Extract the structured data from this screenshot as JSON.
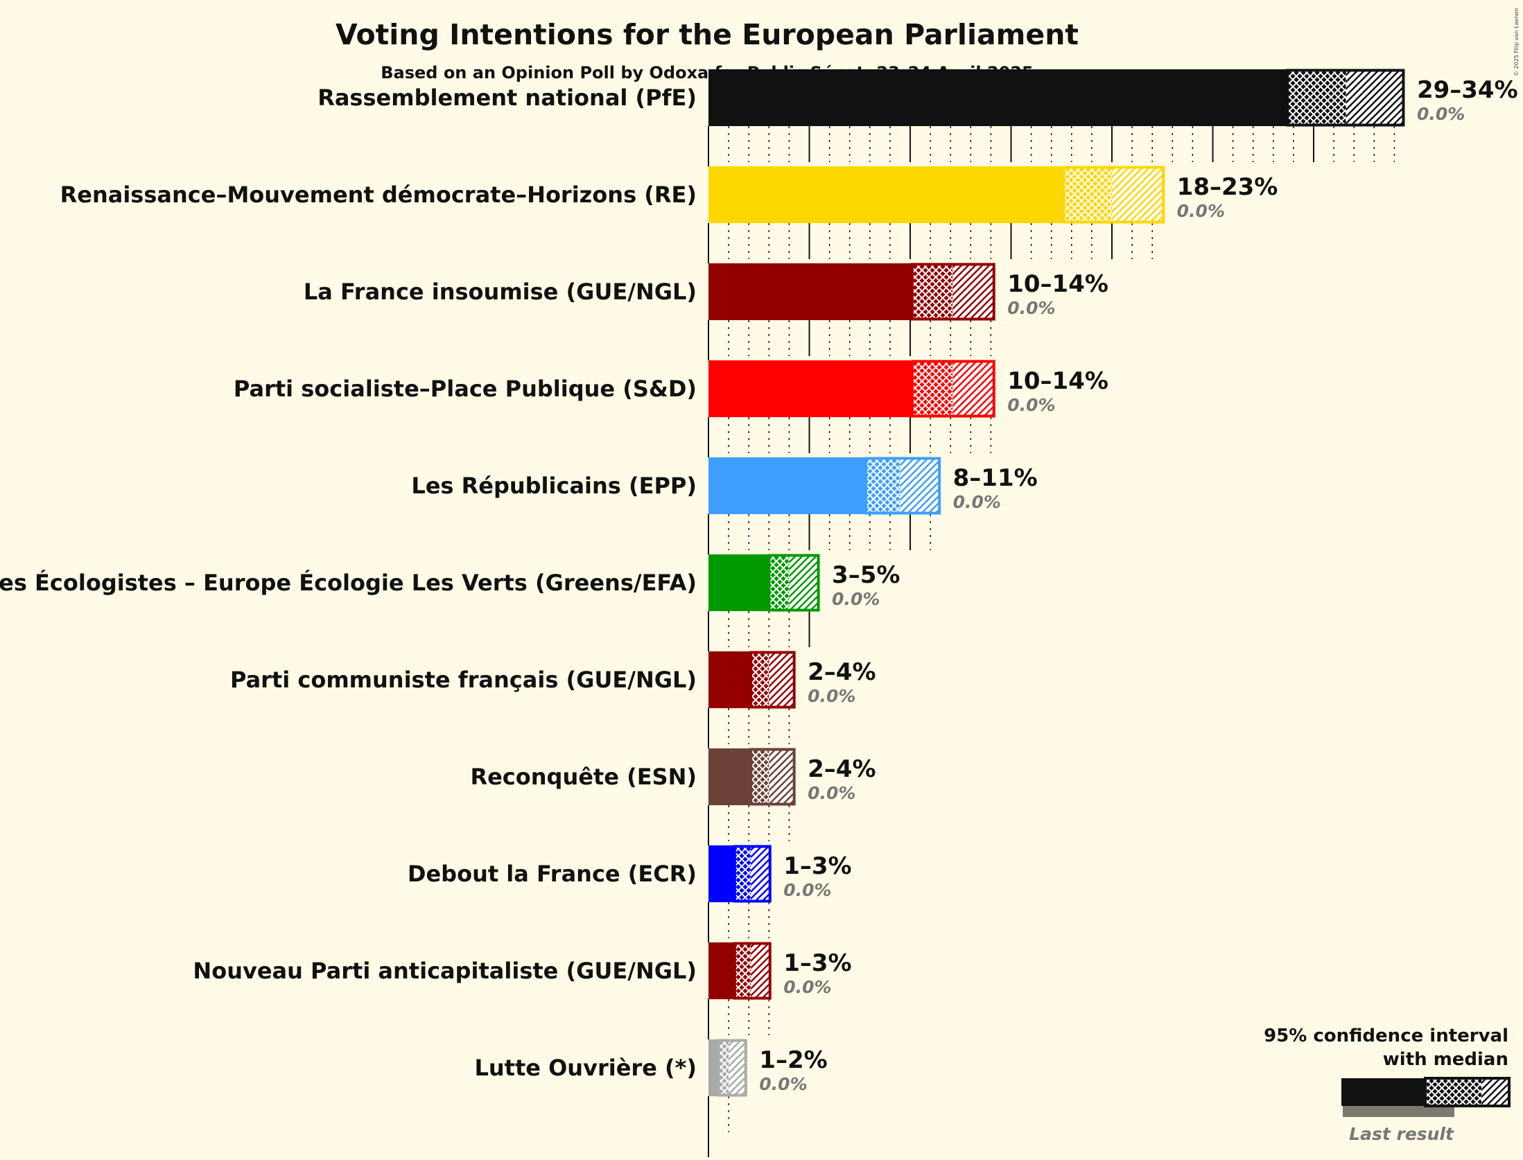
{
  "chart_data": {
    "type": "bar",
    "orientation": "horizontal",
    "title": "Voting Intentions for the European Parliament",
    "subtitle": "Based on an Opinion Poll by Odoxa for Public Sénat, 23–24 April 2025",
    "xlim": [
      0,
      35
    ],
    "grid": true,
    "legend_position": "bottom-right",
    "legend": {
      "title_line1": "95% confidence interval",
      "title_line2": "with median",
      "last_result": "Last result"
    },
    "copyright": "© 2025 Filip van Laenen",
    "parties": [
      {
        "name": "Rassemblement national (PfE)",
        "color": "#111111",
        "low": 28.7,
        "median": 31.6,
        "high": 34.5,
        "range_label": "29–34%",
        "last_label": "0.0%"
      },
      {
        "name": "Renaissance–Mouvement démocrate–Horizons (RE)",
        "color": "#ffd700",
        "low": 17.6,
        "median": 20.0,
        "high": 22.6,
        "range_label": "18–23%",
        "last_label": "0.0%"
      },
      {
        "name": "La France insoumise (GUE/NGL)",
        "color": "#940000",
        "low": 10.1,
        "median": 12.1,
        "high": 14.2,
        "range_label": "10–14%",
        "last_label": "0.0%"
      },
      {
        "name": "Parti socialiste–Place Publique (S&D)",
        "color": "#ff0000",
        "low": 10.1,
        "median": 12.1,
        "high": 14.2,
        "range_label": "10–14%",
        "last_label": "0.0%"
      },
      {
        "name": "Les Républicains (EPP)",
        "color": "#3d9eff",
        "low": 7.8,
        "median": 9.5,
        "high": 11.5,
        "range_label": "8–11%",
        "last_label": "0.0%"
      },
      {
        "name": "Les Écologistes – Europe Écologie Les Verts (Greens/EFA)",
        "color": "#009900",
        "low": 3.0,
        "median": 4.0,
        "high": 5.5,
        "range_label": "3–5%",
        "last_label": "0.0%"
      },
      {
        "name": "Parti communiste français (GUE/NGL)",
        "color": "#940000",
        "low": 2.1,
        "median": 3.0,
        "high": 4.3,
        "range_label": "2–4%",
        "last_label": "0.0%"
      },
      {
        "name": "Reconquête (ESN)",
        "color": "#6b4138",
        "low": 2.1,
        "median": 3.0,
        "high": 4.3,
        "range_label": "2–4%",
        "last_label": "0.0%"
      },
      {
        "name": "Debout la France (ECR)",
        "color": "#0000ff",
        "low": 1.3,
        "median": 2.1,
        "high": 3.1,
        "range_label": "1–3%",
        "last_label": "0.0%"
      },
      {
        "name": "Nouveau Parti anticapitaliste (GUE/NGL)",
        "color": "#940000",
        "low": 1.3,
        "median": 2.1,
        "high": 3.1,
        "range_label": "1–3%",
        "last_label": "0.0%"
      },
      {
        "name": "Lutte Ouvrière (*)",
        "color": "#aaaaaa",
        "low": 0.5,
        "median": 1.0,
        "high": 1.9,
        "range_label": "1–2%",
        "last_label": "0.0%"
      }
    ]
  }
}
